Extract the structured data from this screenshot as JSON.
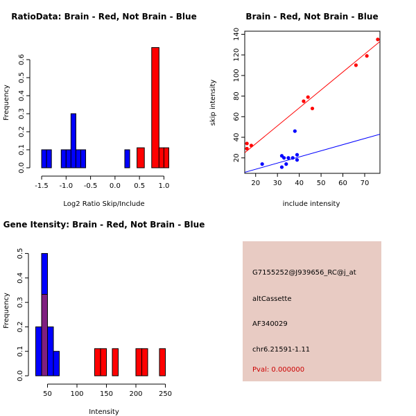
{
  "colors": {
    "brain": "#ff0000",
    "not_brain": "#0000ff",
    "overlap": "#7f1f80",
    "info_bg": "#e8cbc3",
    "pval": "#cc0000"
  },
  "chart_data": [
    {
      "id": "ratio",
      "type": "bar",
      "title": "RatioData: Brain - Red, Not Brain - Blue",
      "xlabel": "Log2 Ratio Skip/Include",
      "ylabel": "Frequency",
      "xlim": [
        -1.6,
        1.15
      ],
      "ylim": [
        0,
        0.7
      ],
      "xticks": [
        -1.5,
        -1.0,
        -0.5,
        0.0,
        0.5,
        1.0
      ],
      "xtick_labels": [
        "-1.5",
        "-1.0",
        "-0.5",
        "0.0",
        "0.5",
        "1.0"
      ],
      "yticks": [
        0,
        0.1,
        0.2,
        0.3,
        0.4,
        0.5,
        0.6
      ],
      "ytick_labels": [
        "0.0",
        "0.1",
        "0.2",
        "0.3",
        "0.4",
        "0.5",
        "0.6"
      ],
      "series": [
        {
          "name": "Not Brain",
          "color": "blue",
          "bins": [
            [
              -1.5,
              -1.4,
              0.1
            ],
            [
              -1.4,
              -1.3,
              0.1
            ],
            [
              -1.1,
              -1.0,
              0.1
            ],
            [
              -1.0,
              -0.9,
              0.1
            ],
            [
              -0.9,
              -0.8,
              0.3
            ],
            [
              -0.8,
              -0.7,
              0.1
            ],
            [
              -0.7,
              -0.6,
              0.1
            ],
            [
              0.2,
              0.3,
              0.1
            ]
          ]
        },
        {
          "name": "Brain",
          "color": "red",
          "bins": [
            [
              0.45,
              0.6,
              0.111
            ],
            [
              0.75,
              0.9,
              0.667
            ],
            [
              0.9,
              1.0,
              0.111
            ],
            [
              1.0,
              1.1,
              0.111
            ]
          ]
        }
      ]
    },
    {
      "id": "scatter",
      "type": "scatter",
      "title": "Brain - Red, Not Brain - Blue",
      "xlabel": "include intensity",
      "ylabel": "skip intensity",
      "xlim": [
        15,
        77
      ],
      "ylim": [
        5,
        143
      ],
      "xticks": [
        20,
        30,
        40,
        50,
        60,
        70
      ],
      "yticks": [
        20,
        40,
        60,
        80,
        100,
        120,
        140
      ],
      "series": [
        {
          "name": "Brain",
          "color": "red",
          "points": [
            [
              16,
              29
            ],
            [
              16,
              34
            ],
            [
              18,
              32
            ],
            [
              42,
              75
            ],
            [
              44,
              79
            ],
            [
              46,
              68
            ],
            [
              66,
              110
            ],
            [
              71,
              119
            ],
            [
              76,
              135
            ]
          ],
          "fit": [
            [
              15,
              25
            ],
            [
              77,
              133
            ]
          ]
        },
        {
          "name": "Not Brain",
          "color": "blue",
          "points": [
            [
              23,
              14
            ],
            [
              32,
              11
            ],
            [
              32,
              22
            ],
            [
              33,
              20
            ],
            [
              34,
              14
            ],
            [
              35,
              20
            ],
            [
              37,
              20
            ],
            [
              38,
              46
            ],
            [
              39,
              18
            ],
            [
              39,
              23
            ]
          ],
          "fit": [
            [
              15,
              6
            ],
            [
              77,
              43
            ]
          ]
        }
      ]
    },
    {
      "id": "intensity",
      "type": "bar",
      "title": "Gene Itensity: Brain - Red, Not Brain - Blue",
      "xlabel": "Intensity",
      "ylabel": "Frequency",
      "xlim": [
        20,
        260
      ],
      "ylim": [
        0,
        0.53
      ],
      "xticks": [
        50,
        100,
        150,
        200,
        250
      ],
      "yticks": [
        0,
        0.1,
        0.2,
        0.3,
        0.4,
        0.5
      ],
      "ytick_labels": [
        "0.0",
        "0.1",
        "0.2",
        "0.3",
        "0.4",
        "0.5"
      ],
      "series": [
        {
          "name": "Not Brain",
          "color": "blue",
          "bins": [
            [
              30,
              40,
              0.2
            ],
            [
              40,
              50,
              0.5
            ],
            [
              50,
              60,
              0.2
            ],
            [
              60,
              70,
              0.1
            ]
          ]
        },
        {
          "name": "Brain",
          "color": "red",
          "bins": [
            [
              40,
              50,
              0.333
            ],
            [
              130,
              140,
              0.111
            ],
            [
              140,
              150,
              0.111
            ],
            [
              160,
              170,
              0.111
            ],
            [
              200,
              210,
              0.111
            ],
            [
              210,
              220,
              0.111
            ],
            [
              240,
              250,
              0.111
            ]
          ]
        }
      ]
    }
  ],
  "info": {
    "probe": "G7155252@J939656_RC@j_at",
    "event": "altCassette",
    "accession": "AF340029",
    "location": "chr6.21591-1.11",
    "pval": "Pval: 0.000000"
  }
}
